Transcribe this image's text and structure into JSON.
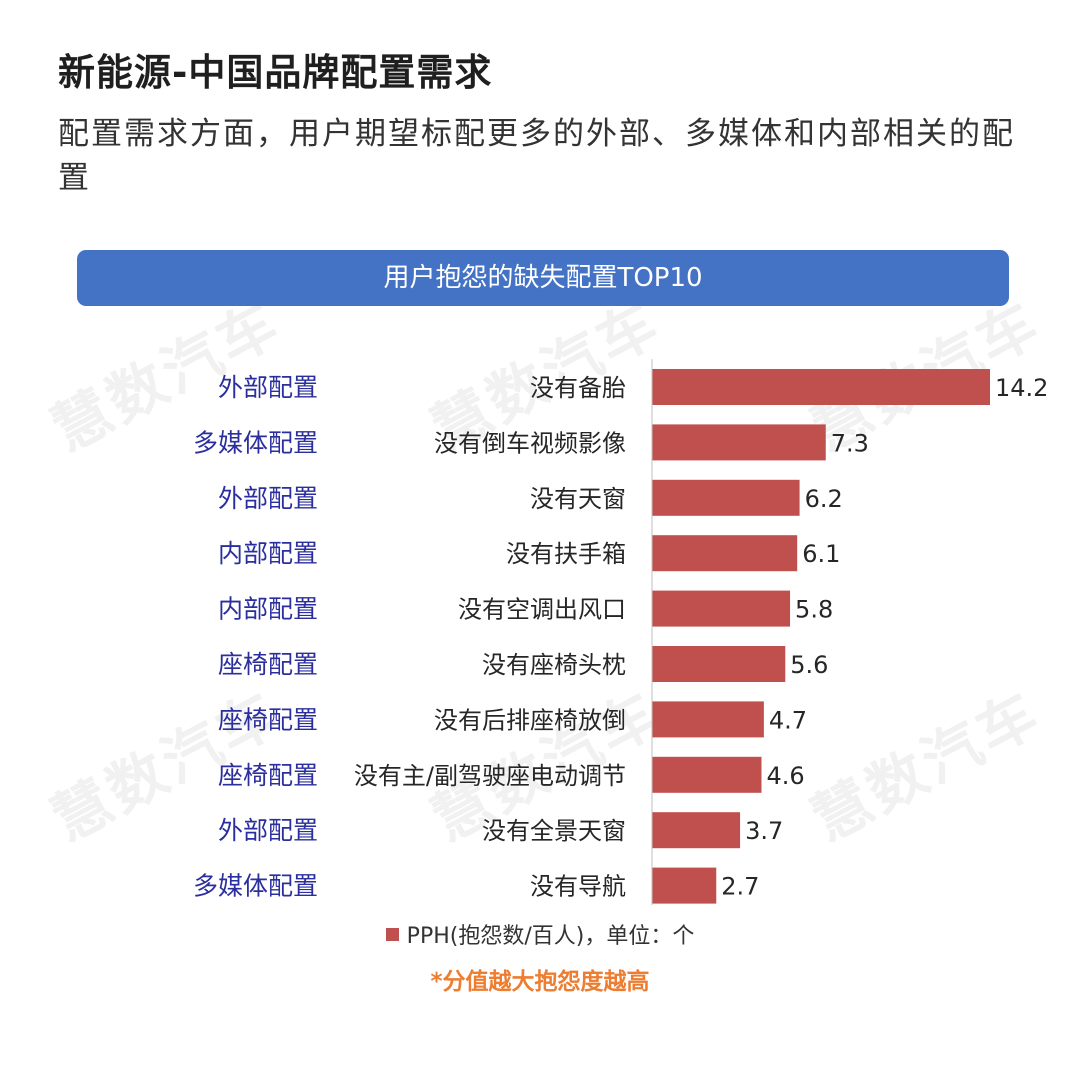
{
  "header": {
    "title": "新能源-中国品牌配置需求",
    "subtitle": "配置需求方面，用户期望标配更多的外部、多媒体和内部相关的配置"
  },
  "banner": {
    "label": "用户抱怨的缺失配置TOP10"
  },
  "watermark": {
    "text": "慧数汽车"
  },
  "legend": {
    "label": "PPH(抱怨数/百人)，单位：个"
  },
  "note": {
    "text": "*分值越大抱怨度越高"
  },
  "colors": {
    "bar": "#c0504d",
    "category": "#2b2f9e",
    "banner": "#4472c4",
    "note": "#ed7d31"
  },
  "chart_data": {
    "type": "bar",
    "orientation": "horizontal",
    "title": "用户抱怨的缺失配置TOP10",
    "groups": [
      "外部配置",
      "多媒体配置",
      "外部配置",
      "内部配置",
      "内部配置",
      "座椅配置",
      "座椅配置",
      "座椅配置",
      "外部配置",
      "多媒体配置"
    ],
    "categories": [
      "没有备胎",
      "没有倒车视频影像",
      "没有天窗",
      "没有扶手箱",
      "没有空调出风口",
      "没有座椅头枕",
      "没有后排座椅放倒",
      "没有主/副驾驶座电动调节",
      "没有全景天窗",
      "没有导航"
    ],
    "series": [
      {
        "name": "PPH(抱怨数/百人)，单位：个",
        "values": [
          14.2,
          7.3,
          6.2,
          6.1,
          5.8,
          5.6,
          4.7,
          4.6,
          3.7,
          2.7
        ]
      }
    ],
    "xlim": [
      0,
      14.2
    ],
    "legend_position": "bottom",
    "grid": false
  }
}
